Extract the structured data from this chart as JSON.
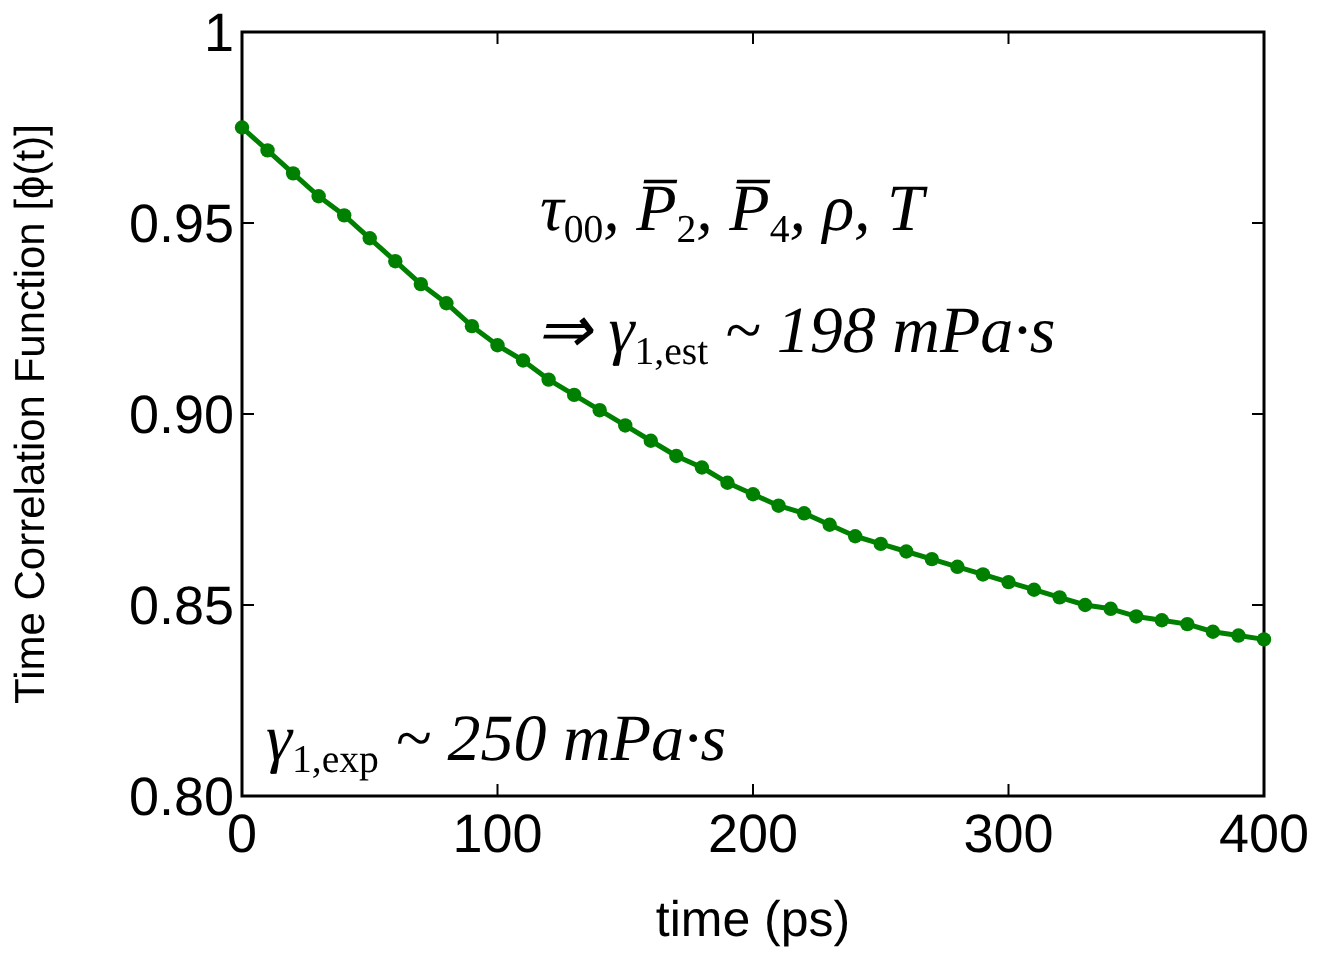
{
  "chart_data": {
    "type": "line",
    "xlabel": "time (ps)",
    "ylabel": "Time Correlation Function [ϕ(t)]",
    "x": [
      0,
      10,
      20,
      30,
      40,
      50,
      60,
      70,
      80,
      90,
      100,
      110,
      120,
      130,
      140,
      150,
      160,
      170,
      180,
      190,
      200,
      210,
      220,
      230,
      240,
      250,
      260,
      270,
      280,
      290,
      300,
      310,
      320,
      330,
      340,
      350,
      360,
      370,
      380,
      390,
      400
    ],
    "series": [
      {
        "color": "#008000",
        "values": [
          0.975,
          0.969,
          0.963,
          0.957,
          0.952,
          0.946,
          0.94,
          0.934,
          0.929,
          0.923,
          0.918,
          0.914,
          0.909,
          0.905,
          0.901,
          0.897,
          0.893,
          0.889,
          0.886,
          0.882,
          0.879,
          0.876,
          0.874,
          0.871,
          0.868,
          0.866,
          0.864,
          0.862,
          0.86,
          0.858,
          0.856,
          0.854,
          0.852,
          0.85,
          0.849,
          0.847,
          0.846,
          0.845,
          0.843,
          0.842,
          0.841
        ]
      }
    ],
    "xlim": [
      0,
      400
    ],
    "xticks": [
      0,
      100,
      200,
      300,
      400
    ],
    "ylim": [
      0.8,
      1
    ],
    "yticks": [
      {
        "value": 0.8,
        "label": "0.80"
      },
      {
        "value": 0.85,
        "label": "0.85"
      },
      {
        "value": 0.9,
        "label": "0.90"
      },
      0.95,
      1
    ],
    "marker": "circle",
    "line_style": "solid",
    "annotations": [
      "τ$_{00}$, P̅$_{2}$, P̅$_{4}$, ρ, T",
      "⇒ γ$_{1,est}$ ~ 198 mPa·s",
      "γ$_{1,exp}$ ~ 250 mPa·s"
    ]
  }
}
